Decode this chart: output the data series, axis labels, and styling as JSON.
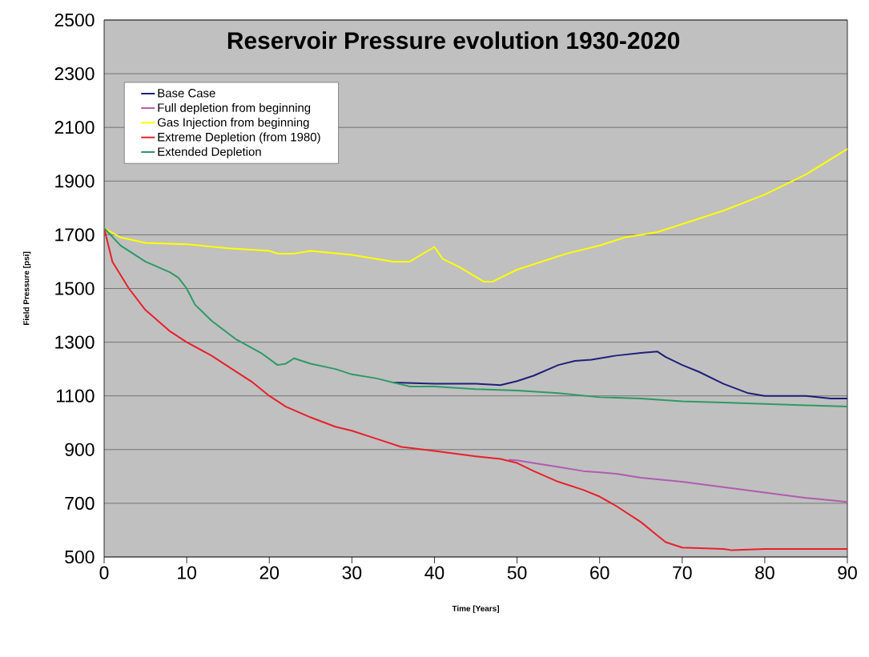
{
  "chart_data": {
    "type": "line",
    "title": "Reservoir Pressure evolution 1930-2020",
    "xlabel": "Time [Years]",
    "ylabel": "Field Pressure [psi]",
    "xlim": [
      0,
      90
    ],
    "ylim": [
      500,
      2500
    ],
    "xticks": [
      0,
      10,
      20,
      30,
      40,
      50,
      60,
      70,
      80,
      90
    ],
    "yticks": [
      500,
      700,
      900,
      1100,
      1300,
      1500,
      1700,
      1900,
      2100,
      2300,
      2500
    ],
    "grid": "y",
    "legend": "top left",
    "marker": "none",
    "line_style": "solid",
    "series": [
      {
        "name": "Base Case",
        "color": "#1f1f7a",
        "x": [
          35,
          40,
          45,
          48,
          50,
          52,
          55,
          57,
          59,
          62,
          65,
          67,
          68,
          70,
          72,
          75,
          78,
          80,
          85,
          88,
          90
        ],
        "values": [
          1150,
          1145,
          1145,
          1140,
          1155,
          1175,
          1215,
          1230,
          1235,
          1250,
          1260,
          1265,
          1245,
          1215,
          1190,
          1145,
          1110,
          1100,
          1100,
          1090,
          1090
        ]
      },
      {
        "name": "Full depletion from beginning",
        "color": "#b05cb0",
        "x": [
          49,
          50,
          53,
          55,
          58,
          60,
          62,
          65,
          70,
          75,
          80,
          85,
          90
        ],
        "values": [
          862,
          860,
          845,
          835,
          820,
          815,
          810,
          795,
          780,
          760,
          740,
          720,
          705
        ]
      },
      {
        "name": "Gas Injection from beginning",
        "color": "#ffff00",
        "x": [
          0,
          2,
          5,
          10,
          15,
          20,
          21,
          23,
          25,
          30,
          35,
          37,
          40,
          41,
          43,
          46,
          47,
          50,
          53,
          56,
          60,
          63,
          67,
          70,
          75,
          80,
          85,
          90
        ],
        "values": [
          1725,
          1690,
          1670,
          1665,
          1650,
          1640,
          1630,
          1630,
          1640,
          1625,
          1600,
          1600,
          1655,
          1610,
          1580,
          1525,
          1525,
          1570,
          1600,
          1630,
          1660,
          1690,
          1710,
          1740,
          1790,
          1850,
          1925,
          2020
        ]
      },
      {
        "name": "Extreme Depletion (from 1980)",
        "color": "#e8202a",
        "x": [
          0,
          1,
          3,
          5,
          8,
          10,
          13,
          15,
          18,
          20,
          22,
          25,
          28,
          30,
          33,
          36,
          40,
          45,
          48,
          50,
          52,
          55,
          58,
          60,
          62,
          65,
          67,
          68,
          70,
          75,
          76,
          80,
          90
        ],
        "values": [
          1725,
          1600,
          1500,
          1420,
          1340,
          1300,
          1250,
          1210,
          1150,
          1100,
          1060,
          1020,
          985,
          970,
          940,
          910,
          895,
          875,
          865,
          850,
          820,
          780,
          750,
          725,
          690,
          630,
          580,
          555,
          535,
          530,
          525,
          530,
          530
        ]
      },
      {
        "name": "Extended Depletion",
        "color": "#2e9966",
        "x": [
          0,
          2,
          5,
          8,
          9,
          10,
          11,
          13,
          16,
          19,
          21,
          22,
          23,
          25,
          28,
          30,
          33,
          35,
          37,
          40,
          45,
          50,
          55,
          60,
          65,
          70,
          75,
          80,
          85,
          90
        ],
        "values": [
          1725,
          1660,
          1600,
          1560,
          1540,
          1500,
          1440,
          1380,
          1310,
          1260,
          1215,
          1220,
          1240,
          1220,
          1200,
          1180,
          1165,
          1150,
          1135,
          1135,
          1125,
          1120,
          1110,
          1095,
          1090,
          1080,
          1075,
          1070,
          1065,
          1060
        ]
      }
    ]
  }
}
